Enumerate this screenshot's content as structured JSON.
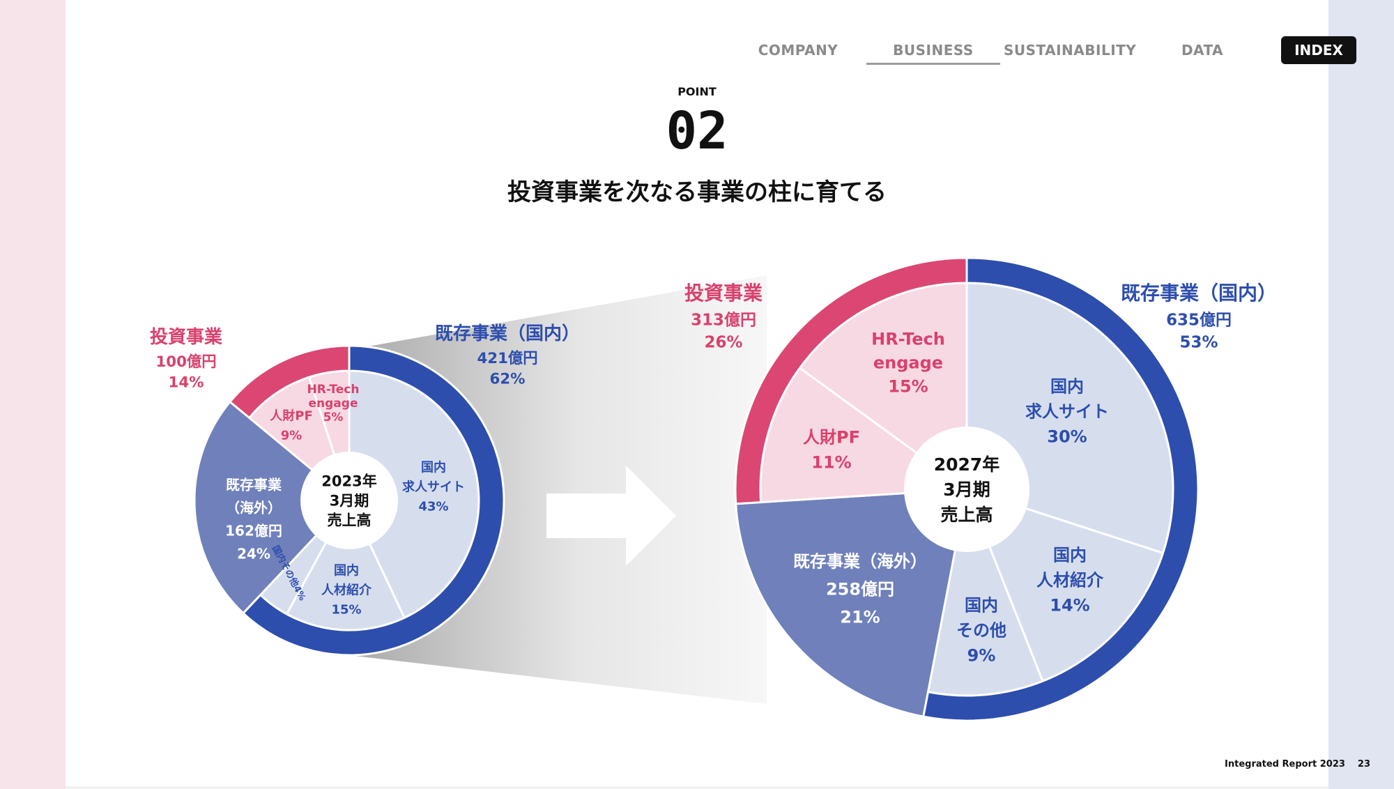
{
  "nav": {
    "items": [
      "COMPANY",
      "BUSINESS",
      "SUSTAINABILITY",
      "DATA"
    ],
    "active": "BUSINESS",
    "index_label": "INDEX"
  },
  "header": {
    "point_label": "POINT",
    "point_number": "02",
    "headline": "投資事業を次なる事業の柱に育てる"
  },
  "footer": {
    "report": "Integrated Report 2023",
    "page": "23"
  },
  "colors": {
    "invest_dark": "#db4772",
    "invest_light": "#f7d9e3",
    "domestic_dark": "#2d4ead",
    "domestic_light": "#d6deee",
    "overseas": "#6f80bb",
    "text_pink": "#d9416c",
    "text_blue": "#2d4ead"
  },
  "chart_data": [
    {
      "type": "pie",
      "title": "2023年3月期売上高",
      "center_label": [
        "2023年",
        "3月期",
        "売上高"
      ],
      "outer_groups": [
        {
          "name": "既存事業（国内）",
          "amount": "421億円",
          "percent": 62
        },
        {
          "name": "既存事業（海外）",
          "amount": "162億円",
          "percent": 24
        },
        {
          "name": "投資事業",
          "amount": "100億円",
          "percent": 14
        }
      ],
      "segments": [
        {
          "group": "既存事業（国内）",
          "label": [
            "国内",
            "求人サイト"
          ],
          "percent": 43
        },
        {
          "group": "既存事業（国内）",
          "label": [
            "国内",
            "人材紹介"
          ],
          "percent": 15
        },
        {
          "group": "既存事業（国内）",
          "label": [
            "国内その他"
          ],
          "percent": 4
        },
        {
          "group": "既存事業（海外）",
          "label": [
            "既存事業",
            "（海外）"
          ],
          "amount": "162億円",
          "percent": 24
        },
        {
          "group": "投資事業",
          "label": [
            "人財PF"
          ],
          "percent": 9
        },
        {
          "group": "投資事業",
          "label": [
            "HR-Tech",
            "engage"
          ],
          "percent": 5
        }
      ]
    },
    {
      "type": "pie",
      "title": "2027年3月期売上高",
      "center_label": [
        "2027年",
        "3月期",
        "売上高"
      ],
      "outer_groups": [
        {
          "name": "既存事業（国内）",
          "amount": "635億円",
          "percent": 53
        },
        {
          "name": "既存事業（海外）",
          "amount": "258億円",
          "percent": 21
        },
        {
          "name": "投資事業",
          "amount": "313億円",
          "percent": 26
        }
      ],
      "segments": [
        {
          "group": "既存事業（国内）",
          "label": [
            "国内",
            "求人サイト"
          ],
          "percent": 30
        },
        {
          "group": "既存事業（国内）",
          "label": [
            "国内",
            "人材紹介"
          ],
          "percent": 14
        },
        {
          "group": "既存事業（国内）",
          "label": [
            "国内",
            "その他"
          ],
          "percent": 9
        },
        {
          "group": "既存事業（海外）",
          "label": [
            "既存事業（海外）"
          ],
          "amount": "258億円",
          "percent": 21
        },
        {
          "group": "投資事業",
          "label": [
            "人財PF"
          ],
          "percent": 11
        },
        {
          "group": "投資事業",
          "label": [
            "HR-Tech",
            "engage"
          ],
          "percent": 15
        }
      ]
    }
  ]
}
